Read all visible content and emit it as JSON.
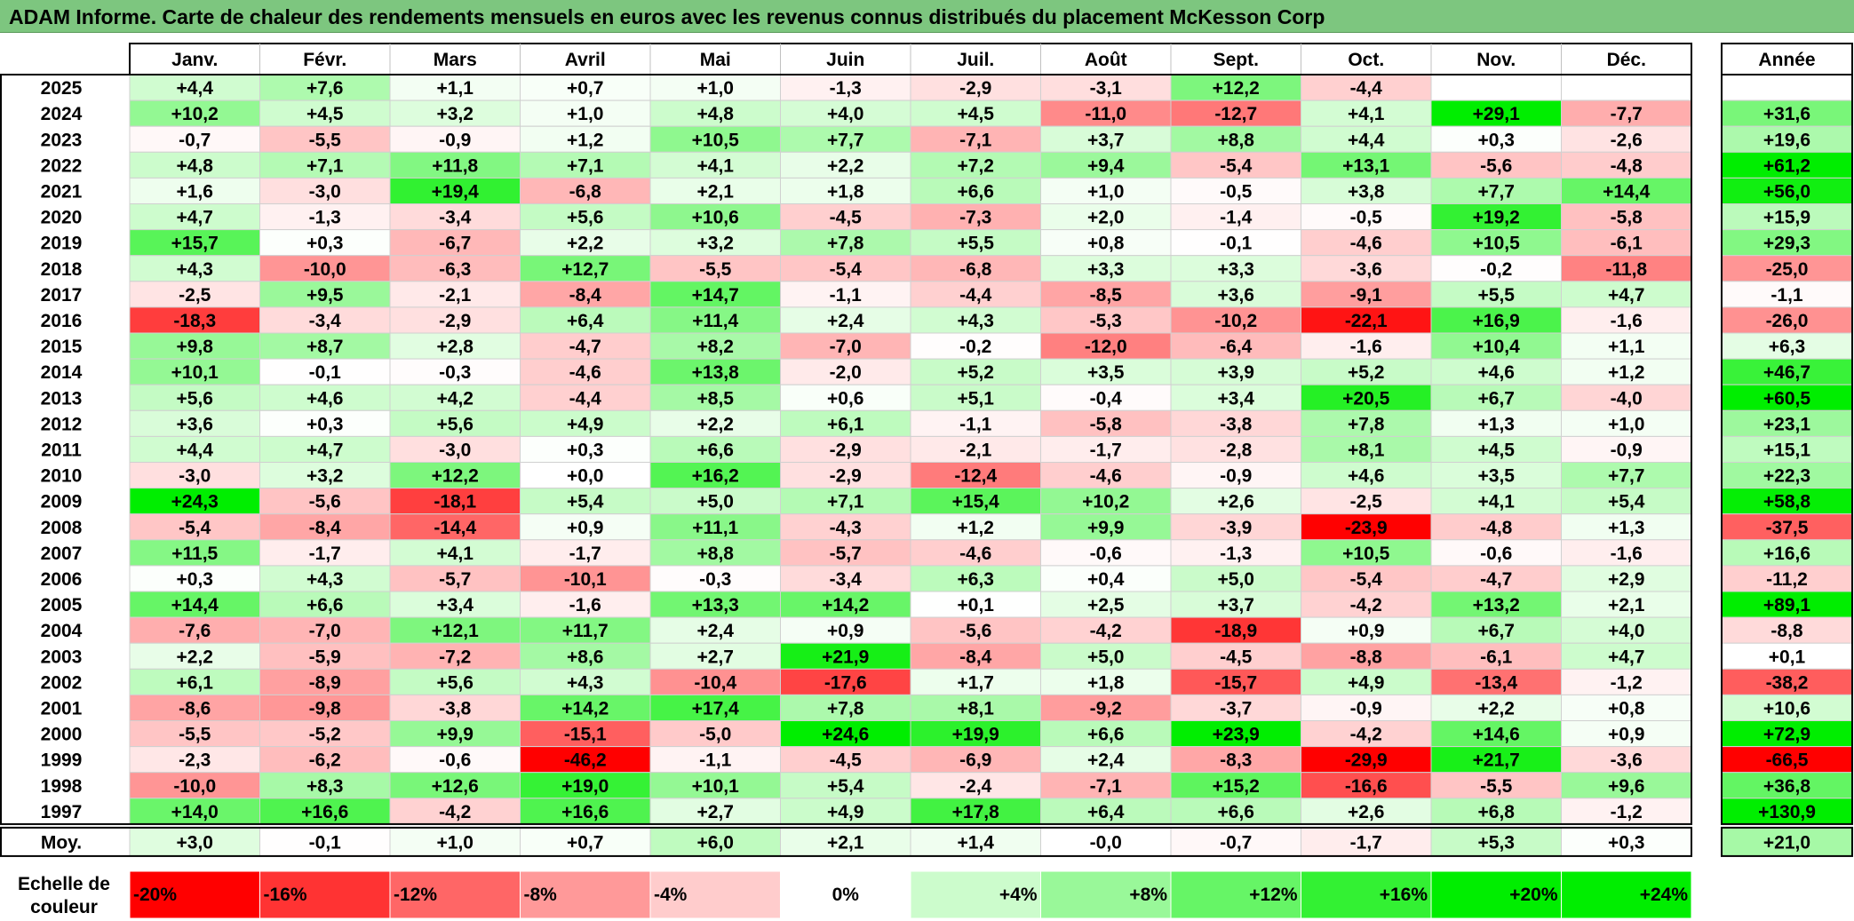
{
  "title": "ADAM Informe. Carte de chaleur des rendements mensuels en euros avec les revenus connus distribués du placement McKesson Corp",
  "chart_data": {
    "type": "heatmap",
    "columns": [
      "Janv.",
      "Févr.",
      "Mars",
      "Avril",
      "Mai",
      "Juin",
      "Juil.",
      "Août",
      "Sept.",
      "Oct.",
      "Nov.",
      "Déc."
    ],
    "year_header": "Année",
    "average_label": "Moy.",
    "rows": [
      {
        "year": "2025",
        "values": [
          "+4,4",
          "+7,6",
          "+1,1",
          "+0,7",
          "+1,0",
          "-1,3",
          "-2,9",
          "-3,1",
          "+12,2",
          "-4,4",
          "",
          ""
        ],
        "annual": ""
      },
      {
        "year": "2024",
        "values": [
          "+10,2",
          "+4,5",
          "+3,2",
          "+1,0",
          "+4,8",
          "+4,0",
          "+4,5",
          "-11,0",
          "-12,7",
          "+4,1",
          "+29,1",
          "-7,7"
        ],
        "annual": "+31,6"
      },
      {
        "year": "2023",
        "values": [
          "-0,7",
          "-5,5",
          "-0,9",
          "+1,2",
          "+10,5",
          "+7,7",
          "-7,1",
          "+3,7",
          "+8,8",
          "+4,4",
          "+0,3",
          "-2,6"
        ],
        "annual": "+19,6"
      },
      {
        "year": "2022",
        "values": [
          "+4,8",
          "+7,1",
          "+11,8",
          "+7,1",
          "+4,1",
          "+2,2",
          "+7,2",
          "+9,4",
          "-5,4",
          "+13,1",
          "-5,6",
          "-4,8"
        ],
        "annual": "+61,2"
      },
      {
        "year": "2021",
        "values": [
          "+1,6",
          "-3,0",
          "+19,4",
          "-6,8",
          "+2,1",
          "+1,8",
          "+6,6",
          "+1,0",
          "-0,5",
          "+3,8",
          "+7,7",
          "+14,4"
        ],
        "annual": "+56,0"
      },
      {
        "year": "2020",
        "values": [
          "+4,7",
          "-1,3",
          "-3,4",
          "+5,6",
          "+10,6",
          "-4,5",
          "-7,3",
          "+2,0",
          "-1,4",
          "-0,5",
          "+19,2",
          "-5,8"
        ],
        "annual": "+15,9"
      },
      {
        "year": "2019",
        "values": [
          "+15,7",
          "+0,3",
          "-6,7",
          "+2,2",
          "+3,2",
          "+7,8",
          "+5,5",
          "+0,8",
          "-0,1",
          "-4,6",
          "+10,5",
          "-6,1"
        ],
        "annual": "+29,3"
      },
      {
        "year": "2018",
        "values": [
          "+4,3",
          "-10,0",
          "-6,3",
          "+12,7",
          "-5,5",
          "-5,4",
          "-6,8",
          "+3,3",
          "+3,3",
          "-3,6",
          "-0,2",
          "-11,8"
        ],
        "annual": "-25,0"
      },
      {
        "year": "2017",
        "values": [
          "-2,5",
          "+9,5",
          "-2,1",
          "-8,4",
          "+14,7",
          "-1,1",
          "-4,4",
          "-8,5",
          "+3,6",
          "-9,1",
          "+5,5",
          "+4,7"
        ],
        "annual": "-1,1"
      },
      {
        "year": "2016",
        "values": [
          "-18,3",
          "-3,4",
          "-2,9",
          "+6,4",
          "+11,4",
          "+2,4",
          "+4,3",
          "-5,3",
          "-10,2",
          "-22,1",
          "+16,9",
          "-1,6"
        ],
        "annual": "-26,0"
      },
      {
        "year": "2015",
        "values": [
          "+9,8",
          "+8,7",
          "+2,8",
          "-4,7",
          "+8,2",
          "-7,0",
          "-0,2",
          "-12,0",
          "-6,4",
          "-1,6",
          "+10,4",
          "+1,1"
        ],
        "annual": "+6,3"
      },
      {
        "year": "2014",
        "values": [
          "+10,1",
          "-0,1",
          "-0,3",
          "-4,6",
          "+13,8",
          "-2,0",
          "+5,2",
          "+3,5",
          "+3,9",
          "+5,2",
          "+4,6",
          "+1,2"
        ],
        "annual": "+46,7"
      },
      {
        "year": "2013",
        "values": [
          "+5,6",
          "+4,6",
          "+4,2",
          "-4,4",
          "+8,5",
          "+0,6",
          "+5,1",
          "-0,4",
          "+3,4",
          "+20,5",
          "+6,7",
          "-4,0"
        ],
        "annual": "+60,5"
      },
      {
        "year": "2012",
        "values": [
          "+3,6",
          "+0,3",
          "+5,6",
          "+4,9",
          "+2,2",
          "+6,1",
          "-1,1",
          "-5,8",
          "-3,8",
          "+7,8",
          "+1,3",
          "+1,0"
        ],
        "annual": "+23,1"
      },
      {
        "year": "2011",
        "values": [
          "+4,4",
          "+4,7",
          "-3,0",
          "+0,3",
          "+6,6",
          "-2,9",
          "-2,1",
          "-1,7",
          "-2,8",
          "+8,1",
          "+4,5",
          "-0,9"
        ],
        "annual": "+15,1"
      },
      {
        "year": "2010",
        "values": [
          "-3,0",
          "+3,2",
          "+12,2",
          "+0,0",
          "+16,2",
          "-2,9",
          "-12,4",
          "-4,6",
          "-0,9",
          "+4,6",
          "+3,5",
          "+7,7"
        ],
        "annual": "+22,3"
      },
      {
        "year": "2009",
        "values": [
          "+24,3",
          "-5,6",
          "-18,1",
          "+5,4",
          "+5,0",
          "+7,1",
          "+15,4",
          "+10,2",
          "+2,6",
          "-2,5",
          "+4,1",
          "+5,4"
        ],
        "annual": "+58,8"
      },
      {
        "year": "2008",
        "values": [
          "-5,4",
          "-8,4",
          "-14,4",
          "+0,9",
          "+11,1",
          "-4,3",
          "+1,2",
          "+9,9",
          "-3,9",
          "-23,9",
          "-4,8",
          "+1,3"
        ],
        "annual": "-37,5"
      },
      {
        "year": "2007",
        "values": [
          "+11,5",
          "-1,7",
          "+4,1",
          "-1,7",
          "+8,8",
          "-5,7",
          "-4,6",
          "-0,6",
          "-1,3",
          "+10,5",
          "-0,6",
          "-1,6"
        ],
        "annual": "+16,6"
      },
      {
        "year": "2006",
        "values": [
          "+0,3",
          "+4,3",
          "-5,7",
          "-10,1",
          "-0,3",
          "-3,4",
          "+6,3",
          "+0,4",
          "+5,0",
          "-5,4",
          "-4,7",
          "+2,9"
        ],
        "annual": "-11,2"
      },
      {
        "year": "2005",
        "values": [
          "+14,4",
          "+6,6",
          "+3,4",
          "-1,6",
          "+13,3",
          "+14,2",
          "+0,1",
          "+2,5",
          "+3,7",
          "-4,2",
          "+13,2",
          "+2,1"
        ],
        "annual": "+89,1"
      },
      {
        "year": "2004",
        "values": [
          "-7,6",
          "-7,0",
          "+12,1",
          "+11,7",
          "+2,4",
          "+0,9",
          "-5,6",
          "-4,2",
          "-18,9",
          "+0,9",
          "+6,7",
          "+4,0"
        ],
        "annual": "-8,8"
      },
      {
        "year": "2003",
        "values": [
          "+2,2",
          "-5,9",
          "-7,2",
          "+8,6",
          "+2,7",
          "+21,9",
          "-8,4",
          "+5,0",
          "-4,5",
          "-8,8",
          "-6,1",
          "+4,7"
        ],
        "annual": "+0,1"
      },
      {
        "year": "2002",
        "values": [
          "+6,1",
          "-8,9",
          "+5,6",
          "+4,3",
          "-10,4",
          "-17,6",
          "+1,7",
          "+1,8",
          "-15,7",
          "+4,9",
          "-13,4",
          "-1,2"
        ],
        "annual": "-38,2"
      },
      {
        "year": "2001",
        "values": [
          "-8,6",
          "-9,8",
          "-3,8",
          "+14,2",
          "+17,4",
          "+7,8",
          "+8,1",
          "-9,2",
          "-3,7",
          "-0,9",
          "+2,2",
          "+0,8"
        ],
        "annual": "+10,6"
      },
      {
        "year": "2000",
        "values": [
          "-5,5",
          "-5,2",
          "+9,9",
          "-15,1",
          "-5,0",
          "+24,6",
          "+19,9",
          "+6,6",
          "+23,9",
          "-4,2",
          "+14,6",
          "+0,9"
        ],
        "annual": "+72,9"
      },
      {
        "year": "1999",
        "values": [
          "-2,3",
          "-6,2",
          "-0,6",
          "-46,2",
          "-1,1",
          "-4,5",
          "-6,9",
          "+2,4",
          "-8,3",
          "-29,9",
          "+21,7",
          "-3,6"
        ],
        "annual": "-66,5"
      },
      {
        "year": "1998",
        "values": [
          "-10,0",
          "+8,3",
          "+12,6",
          "+19,0",
          "+10,1",
          "+5,4",
          "-2,4",
          "-7,1",
          "+15,2",
          "-16,6",
          "-5,5",
          "+9,6"
        ],
        "annual": "+36,8"
      },
      {
        "year": "1997",
        "values": [
          "+14,0",
          "+16,6",
          "-4,2",
          "+16,6",
          "+2,7",
          "+4,9",
          "+17,8",
          "+6,4",
          "+6,6",
          "+2,6",
          "+6,8",
          "-1,2"
        ],
        "annual": "+130,9"
      }
    ],
    "averages": [
      "+3,0",
      "-0,1",
      "+1,0",
      "+0,7",
      "+6,0",
      "+2,1",
      "+1,4",
      "-0,0",
      "-0,7",
      "-1,7",
      "+5,3",
      "+0,3"
    ],
    "average_annual": "+21,0",
    "legend": {
      "label": "Echelle de couleur",
      "steps": [
        {
          "text": "-20%",
          "value": -20
        },
        {
          "text": "-16%",
          "value": -16
        },
        {
          "text": "-12%",
          "value": -12
        },
        {
          "text": "-8%",
          "value": -8
        },
        {
          "text": "-4%",
          "value": -4
        },
        {
          "text": "0%",
          "value": 0
        },
        {
          "text": "+4%",
          "value": 4
        },
        {
          "text": "+8%",
          "value": 8
        },
        {
          "text": "+12%",
          "value": 12
        },
        {
          "text": "+16%",
          "value": 16
        },
        {
          "text": "+20%",
          "value": 20
        },
        {
          "text": "+24%",
          "value": 24
        }
      ]
    },
    "colors": {
      "title_bar": "#7dc67f",
      "negative_max": "#ff0000",
      "neutral": "#ffffff",
      "positive_max": "#00ee00"
    }
  }
}
